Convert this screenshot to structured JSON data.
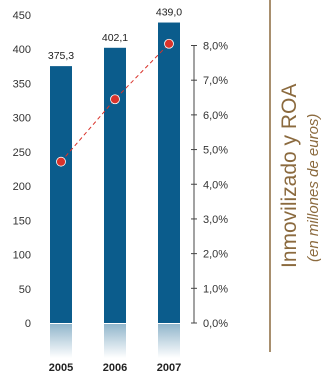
{
  "chart_data": {
    "type": "bar",
    "title": "Inmovilizado y ROA",
    "subtitle": "(en millones de euros)",
    "categories": [
      "2005",
      "2006",
      "2007"
    ],
    "ylim": [
      0,
      450
    ],
    "yticks": [
      "0",
      "50",
      "100",
      "150",
      "200",
      "250",
      "300",
      "350",
      "400",
      "450"
    ],
    "y2lim": [
      0,
      0.08
    ],
    "y2ticks": [
      "0,0%",
      "1,0%",
      "2,0%",
      "3,0%",
      "4,0%",
      "5,0%",
      "6,0%",
      "7,0%",
      "8,0%"
    ],
    "series": [
      {
        "type": "bar",
        "values": [
          375.3,
          402.1,
          439.0
        ],
        "labels": [
          "375,3",
          "402,1",
          "439,0"
        ],
        "color": "#0b5c8c"
      },
      {
        "type": "line",
        "axis": "secondary",
        "values": [
          0.0465,
          0.0645,
          0.0805
        ],
        "color": "#d9332b",
        "style": "dashed"
      }
    ],
    "grid": false,
    "bar_reflection": true,
    "title_color": "#8b6a3e"
  }
}
